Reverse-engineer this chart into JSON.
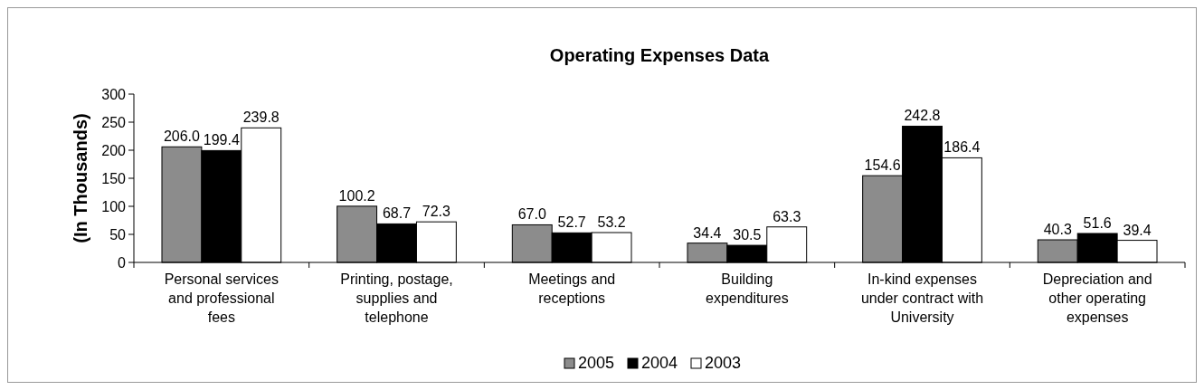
{
  "chart_data": {
    "type": "bar",
    "title": "Operating Expenses Data",
    "ylabel": "(In Thousands)",
    "categories": [
      "Personal services and professional fees",
      "Printing, postage, supplies and telephone",
      "Meetings and receptions",
      "Building expenditures",
      "In-kind expenses under contract with University",
      "Depreciation and other operating expenses"
    ],
    "series": [
      {
        "name": "2005",
        "color": "#8c8c8c",
        "values": [
          206.0,
          100.2,
          67.0,
          34.4,
          154.6,
          40.3
        ],
        "value_labels": [
          "206.0",
          "100.2",
          "67.0",
          "34.4",
          "154.6",
          "40.3"
        ]
      },
      {
        "name": "2004",
        "color": "#000000",
        "values": [
          199.4,
          68.7,
          52.7,
          30.5,
          242.8,
          51.6
        ],
        "value_labels": [
          "199.4",
          "68.7",
          "52.7",
          "30.5",
          "242.8",
          "51.6"
        ]
      },
      {
        "name": "2003",
        "color": "#ffffff",
        "values": [
          239.8,
          72.3,
          53.2,
          63.3,
          186.4,
          39.4
        ],
        "value_labels": [
          "239.8",
          "72.3",
          "53.2",
          "63.3",
          "186.4",
          "39.4"
        ]
      }
    ],
    "ylim": [
      0,
      300
    ],
    "yticks": [
      0,
      50,
      100,
      150,
      200,
      250,
      300
    ],
    "grid": false,
    "legend": "bottom"
  }
}
